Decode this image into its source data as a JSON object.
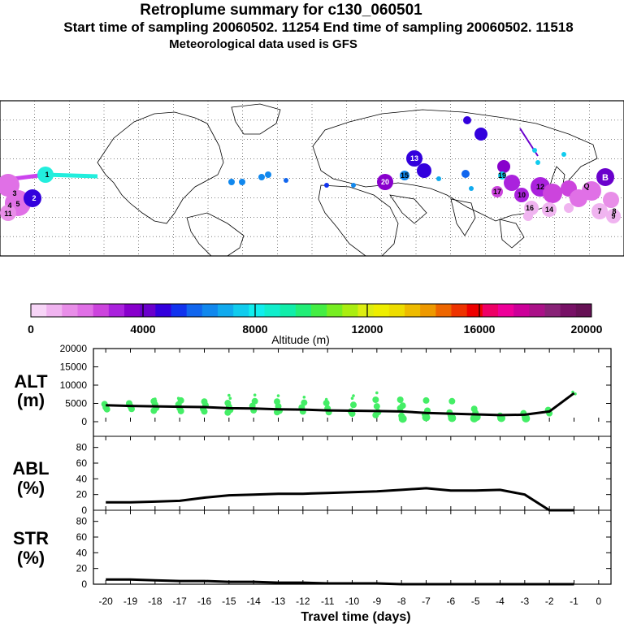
{
  "header": {
    "title": "Retroplume summary for c130_060501",
    "sampling_line": "Start time of sampling 20060502. 11254     End time of sampling 20060502. 11518",
    "met_line": "Meteorological data used is GFS"
  },
  "colors": {
    "scale": [
      "#f7d5f7",
      "#f0b4f0",
      "#e88ee8",
      "#e070e6",
      "#cc44dd",
      "#aa22dd",
      "#8800cc",
      "#6a00cc",
      "#3300dd",
      "#1133ee",
      "#1166ee",
      "#1188ee",
      "#11aaee",
      "#11ccee",
      "#11eeee",
      "#11eecc",
      "#11eeaa",
      "#22ee77",
      "#44ee44",
      "#77ee22",
      "#aaee11",
      "#ddee11",
      "#eeee00",
      "#eedd00",
      "#eebb00",
      "#ee9900",
      "#ee6600",
      "#ee3300",
      "#ee0000",
      "#ee0066",
      "#ee0099",
      "#cc0099",
      "#aa1188",
      "#882277",
      "#771166",
      "#661155"
    ],
    "dot_green": "#44ee66",
    "plume_cyan": "#22eedd",
    "plume_magenta": "#cc44ee"
  },
  "colorbar": {
    "tick_labels": [
      "0",
      "4000",
      "8000",
      "12000",
      "16000",
      "20000"
    ],
    "label": "Altitude (m)"
  },
  "map": {
    "plume_numbers": [
      "1",
      "2",
      "3",
      "4",
      "5",
      "11",
      "13",
      "15",
      "19",
      "20",
      "17",
      "16",
      "14",
      "12",
      "10",
      "7",
      "8",
      "9",
      "B",
      "Q"
    ]
  },
  "chart_data": [
    {
      "type": "line",
      "title": "ALT (m)",
      "ylabel_top": "ALT",
      "ylabel_bottom": "(m)",
      "ylim": [
        0,
        20000
      ],
      "yticks": [
        "0",
        "5000",
        "10000",
        "15000",
        "20000"
      ],
      "x": [
        -20,
        -19,
        -18,
        -17,
        -16,
        -15,
        -14,
        -13,
        -12,
        -11,
        -10,
        -9,
        -8,
        -7,
        -6,
        -5,
        -4,
        -3,
        -2,
        -1
      ],
      "series": [
        {
          "name": "median altitude",
          "values": [
            4500,
            4300,
            4200,
            4100,
            4000,
            3700,
            3600,
            3400,
            3300,
            3100,
            3000,
            2900,
            2800,
            2400,
            2200,
            2000,
            1800,
            1900,
            2800,
            7800
          ]
        },
        {
          "name": "cluster altitudes",
          "points": [
            [
              -20,
              4800
            ],
            [
              -20,
              3900
            ],
            [
              -20,
              3400
            ],
            [
              -19,
              5000
            ],
            [
              -19,
              4200
            ],
            [
              -19,
              3500
            ],
            [
              -18,
              5600
            ],
            [
              -18,
              4700
            ],
            [
              -18,
              3800
            ],
            [
              -18,
              3000
            ],
            [
              -18,
              6200
            ],
            [
              -17,
              5800
            ],
            [
              -17,
              4700
            ],
            [
              -17,
              3700
            ],
            [
              -17,
              2900
            ],
            [
              -17,
              6400
            ],
            [
              -16,
              5500
            ],
            [
              -16,
              4500
            ],
            [
              -16,
              3500
            ],
            [
              -16,
              2800
            ],
            [
              -15,
              6400
            ],
            [
              -15,
              5100
            ],
            [
              -15,
              4100
            ],
            [
              -15,
              3200
            ],
            [
              -15,
              2500
            ],
            [
              -15,
              7200
            ],
            [
              -14,
              5600
            ],
            [
              -14,
              4300
            ],
            [
              -14,
              3100
            ],
            [
              -14,
              7300
            ],
            [
              -13,
              5500
            ],
            [
              -13,
              4200
            ],
            [
              -13,
              3000
            ],
            [
              -13,
              2600
            ],
            [
              -13,
              7100
            ],
            [
              -12,
              5200
            ],
            [
              -12,
              3900
            ],
            [
              -12,
              2800
            ],
            [
              -12,
              6700
            ],
            [
              -11,
              5100
            ],
            [
              -11,
              3600
            ],
            [
              -11,
              2600
            ],
            [
              -11,
              6100
            ],
            [
              -10,
              6400
            ],
            [
              -10,
              4600
            ],
            [
              -10,
              2800
            ],
            [
              -10,
              2200
            ],
            [
              -10,
              7100
            ],
            [
              -9,
              6000
            ],
            [
              -9,
              4200
            ],
            [
              -9,
              2600
            ],
            [
              -9,
              1800
            ],
            [
              -9,
              7900
            ],
            [
              -8,
              4400
            ],
            [
              -8,
              3700
            ],
            [
              -8,
              1600
            ],
            [
              -8,
              800
            ],
            [
              -8,
              6000
            ],
            [
              -7,
              5800
            ],
            [
              -7,
              3000
            ],
            [
              -7,
              2000
            ],
            [
              -7,
              1200
            ],
            [
              -6,
              5600
            ],
            [
              -6,
              2500
            ],
            [
              -6,
              1700
            ],
            [
              -6,
              1000
            ],
            [
              -5,
              3500
            ],
            [
              -5,
              2400
            ],
            [
              -5,
              1300
            ],
            [
              -5,
              900
            ],
            [
              -4,
              1600
            ],
            [
              -4,
              1000
            ],
            [
              -3,
              2300
            ],
            [
              -3,
              1500
            ],
            [
              -3,
              900
            ],
            [
              -2,
              3200
            ],
            [
              -2,
              2300
            ],
            [
              -1,
              7600
            ],
            [
              -1,
              8100
            ]
          ]
        }
      ]
    },
    {
      "type": "line",
      "title": "ABL (%)",
      "ylabel_top": "ABL",
      "ylabel_bottom": "(%)",
      "ylim": [
        0,
        90
      ],
      "yticks": [
        "0",
        "20",
        "40",
        "60",
        "80"
      ],
      "x": [
        -20,
        -19,
        -18,
        -17,
        -16,
        -15,
        -14,
        -13,
        -12,
        -11,
        -10,
        -9,
        -8,
        -7,
        -6,
        -5,
        -4,
        -3,
        -2,
        -1
      ],
      "values": [
        10,
        10,
        11,
        12,
        16,
        19,
        20,
        21,
        21,
        22,
        23,
        24,
        26,
        28,
        25,
        25,
        26,
        20,
        0,
        0
      ]
    },
    {
      "type": "line",
      "title": "STR (%)",
      "ylabel_top": "STR",
      "ylabel_bottom": "(%)",
      "ylim": [
        0,
        90
      ],
      "yticks": [
        "0",
        "20",
        "40",
        "60",
        "80"
      ],
      "x": [
        -20,
        -19,
        -18,
        -17,
        -16,
        -15,
        -14,
        -13,
        -12,
        -11,
        -10,
        -9,
        -8,
        -7,
        -6,
        -5,
        -4,
        -3,
        -2,
        -1
      ],
      "values": [
        6,
        6,
        5,
        4,
        4,
        3,
        3,
        2,
        2,
        1,
        1,
        1,
        0,
        0,
        0,
        0,
        0,
        0,
        0,
        0
      ]
    }
  ],
  "x_axis": {
    "tick_labels": [
      "-20",
      "-19",
      "-18",
      "-17",
      "-16",
      "-15",
      "-14",
      "-13",
      "-12",
      "-11",
      "-10",
      "-9",
      "-8",
      "-7",
      "-6",
      "-5",
      "-4",
      "-3",
      "-2",
      "-1",
      "0"
    ],
    "label": "Travel time (days)"
  }
}
